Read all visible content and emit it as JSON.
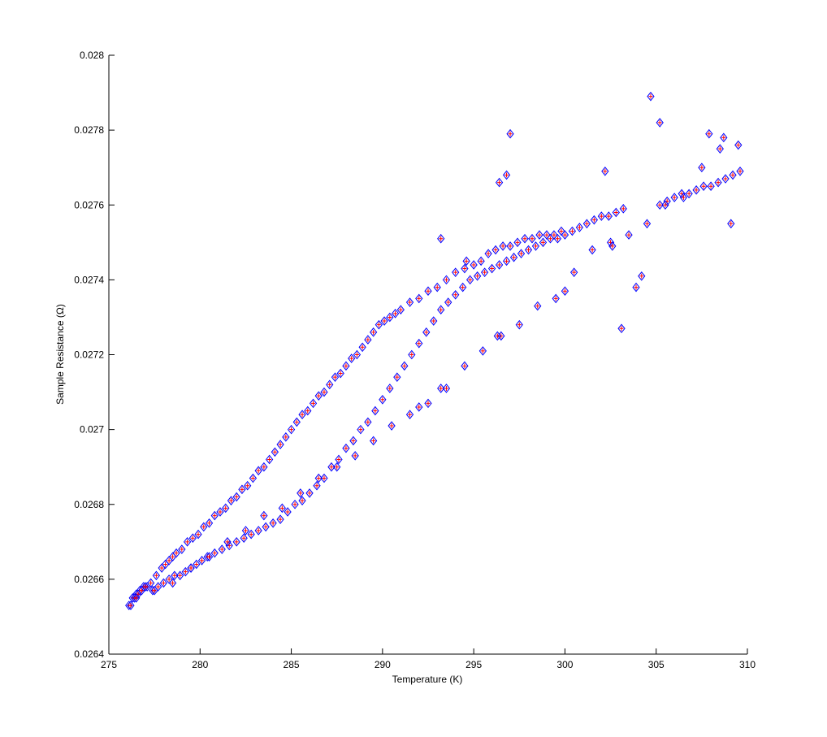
{
  "chart_data": {
    "type": "scatter",
    "title": "",
    "xlabel": "Temperature (K)",
    "ylabel": "Sample Resistance (Ω)",
    "xlim": [
      275,
      310
    ],
    "ylim": [
      0.0264,
      0.028
    ],
    "xticks": [
      275,
      280,
      285,
      290,
      295,
      300,
      305,
      310
    ],
    "yticks": [
      0.0264,
      0.0266,
      0.0268,
      0.027,
      0.0272,
      0.0274,
      0.0276,
      0.0278,
      0.028
    ],
    "xtick_labels": [
      "275",
      "280",
      "285",
      "290",
      "295",
      "300",
      "305",
      "310"
    ],
    "ytick_labels": [
      "0.0264",
      "0.0266",
      "0.0268",
      "0.027",
      "0.0272",
      "0.0274",
      "0.0276",
      "0.0278",
      "0.028"
    ],
    "grid": false,
    "legend": "none",
    "marker": {
      "shape": "diamond-plus",
      "stroke": "#0000ff",
      "fill": "#ff0000"
    },
    "series": [
      {
        "x": [
          276.1,
          276.3,
          276.5,
          276.7,
          276.9,
          277.1,
          277.4,
          277.7,
          278.0,
          278.3,
          278.6,
          278.9,
          279.2,
          279.5,
          279.8,
          280.1,
          280.4,
          280.8,
          281.2,
          281.6,
          282.0,
          282.4,
          282.8,
          283.2,
          283.6,
          284.0,
          284.4,
          284.8,
          285.2,
          285.6,
          286.0,
          286.4,
          286.8,
          287.2,
          287.6,
          288.0,
          288.4,
          288.8,
          289.2,
          289.6,
          290.0,
          290.4,
          290.8,
          291.2,
          291.6,
          292.0,
          292.4,
          292.8,
          293.2,
          293.6,
          294.0,
          294.4,
          294.8,
          295.2,
          295.6,
          296.0,
          296.4,
          296.8,
          297.2,
          297.6,
          298.0,
          298.4,
          298.8,
          299.2,
          299.6,
          300.0,
          300.4,
          300.8,
          301.2,
          301.6,
          302.0,
          302.4,
          302.8,
          303.2,
          305.2,
          305.6,
          306.0,
          306.4,
          306.8,
          307.2,
          307.6,
          308.0,
          308.4,
          308.8,
          309.2,
          309.6
        ],
        "y": [
          0.02653,
          0.02655,
          0.02656,
          0.02657,
          0.02658,
          0.02658,
          0.02657,
          0.02658,
          0.02659,
          0.0266,
          0.02661,
          0.02661,
          0.02662,
          0.02663,
          0.02664,
          0.02665,
          0.02666,
          0.02667,
          0.02668,
          0.02669,
          0.0267,
          0.02671,
          0.02672,
          0.02673,
          0.02674,
          0.02675,
          0.02676,
          0.02678,
          0.0268,
          0.02681,
          0.02683,
          0.02685,
          0.02687,
          0.0269,
          0.02692,
          0.02695,
          0.02697,
          0.027,
          0.02702,
          0.02705,
          0.02708,
          0.02711,
          0.02714,
          0.02717,
          0.0272,
          0.02723,
          0.02726,
          0.02729,
          0.02732,
          0.02734,
          0.02736,
          0.02738,
          0.0274,
          0.02741,
          0.02742,
          0.02743,
          0.02744,
          0.02745,
          0.02746,
          0.02747,
          0.02748,
          0.02749,
          0.0275,
          0.02751,
          0.02751,
          0.02752,
          0.02753,
          0.02754,
          0.02755,
          0.02756,
          0.02757,
          0.02757,
          0.02758,
          0.02759,
          0.0276,
          0.02761,
          0.02762,
          0.02763,
          0.02763,
          0.02764,
          0.02765,
          0.02765,
          0.02766,
          0.02767,
          0.02768,
          0.02769
        ]
      },
      {
        "x": [
          276.2,
          276.4,
          276.6,
          276.8,
          277.0,
          277.3,
          277.6,
          277.9,
          278.1,
          278.3,
          278.5,
          278.7,
          279.0,
          279.3,
          279.6,
          279.9,
          280.2,
          280.5,
          280.8,
          281.1,
          281.4,
          281.7,
          282.0,
          282.3,
          282.6,
          282.9,
          283.2,
          283.5,
          283.8,
          284.1,
          284.4,
          284.7,
          285.0,
          285.3,
          285.6,
          285.9,
          286.2,
          286.5,
          286.8,
          287.1,
          287.4,
          287.7,
          288.0,
          288.3,
          288.6,
          288.9,
          289.2,
          289.5,
          289.8,
          290.1,
          290.4,
          290.7,
          291.0,
          291.5,
          292.0,
          292.5,
          293.0,
          293.5,
          294.0,
          294.5,
          295.0,
          295.4,
          295.8,
          296.2,
          296.6,
          297.0,
          297.4,
          297.8,
          298.2,
          298.6,
          299.0,
          299.4,
          299.8
        ],
        "y": [
          0.02653,
          0.02655,
          0.02656,
          0.02657,
          0.02658,
          0.02659,
          0.02661,
          0.02663,
          0.02664,
          0.02665,
          0.02666,
          0.02667,
          0.02668,
          0.0267,
          0.02671,
          0.02672,
          0.02674,
          0.02675,
          0.02677,
          0.02678,
          0.02679,
          0.02681,
          0.02682,
          0.02684,
          0.02685,
          0.02687,
          0.02689,
          0.0269,
          0.02692,
          0.02694,
          0.02696,
          0.02698,
          0.027,
          0.02702,
          0.02704,
          0.02705,
          0.02707,
          0.02709,
          0.0271,
          0.02712,
          0.02714,
          0.02715,
          0.02717,
          0.02719,
          0.0272,
          0.02722,
          0.02724,
          0.02726,
          0.02728,
          0.02729,
          0.0273,
          0.02731,
          0.02732,
          0.02734,
          0.02735,
          0.02737,
          0.02738,
          0.0274,
          0.02742,
          0.02743,
          0.02744,
          0.02745,
          0.02747,
          0.02748,
          0.02749,
          0.02749,
          0.0275,
          0.02751,
          0.02751,
          0.02752,
          0.02752,
          0.02752,
          0.02753
        ]
      },
      {
        "x": [
          276.5,
          277.5,
          278.5,
          279.5,
          280.5,
          281.5,
          282.5,
          283.5,
          284.5,
          285.5,
          286.5,
          287.5,
          288.5,
          289.5,
          290.5,
          291.5,
          292.5,
          293.5,
          294.5,
          295.5,
          296.5,
          297.5,
          298.5,
          299.5,
          300.5,
          301.5,
          302.5,
          303.5,
          304.5,
          305.5,
          306.5,
          307.5,
          308.5,
          309.5,
          304.7,
          305.2,
          297.0,
          296.4,
          296.8,
          293.2,
          294.6,
          296.3,
          293.2,
          292.0,
          302.2,
          302.6,
          303.1,
          304.2,
          303.9,
          300.0,
          307.9,
          308.7,
          309.1
        ],
        "y": [
          0.02655,
          0.02657,
          0.02659,
          0.02663,
          0.02666,
          0.0267,
          0.02673,
          0.02677,
          0.02679,
          0.02683,
          0.02687,
          0.0269,
          0.02693,
          0.02697,
          0.02701,
          0.02704,
          0.02707,
          0.02711,
          0.02717,
          0.02721,
          0.02725,
          0.02728,
          0.02733,
          0.02735,
          0.02742,
          0.02748,
          0.0275,
          0.02752,
          0.02755,
          0.0276,
          0.02762,
          0.0277,
          0.02775,
          0.02776,
          0.02789,
          0.02782,
          0.02779,
          0.02766,
          0.02768,
          0.02751,
          0.02745,
          0.02725,
          0.02711,
          0.02706,
          0.02769,
          0.02749,
          0.02727,
          0.02741,
          0.02738,
          0.02737,
          0.02779,
          0.02778,
          0.02755
        ]
      }
    ]
  }
}
